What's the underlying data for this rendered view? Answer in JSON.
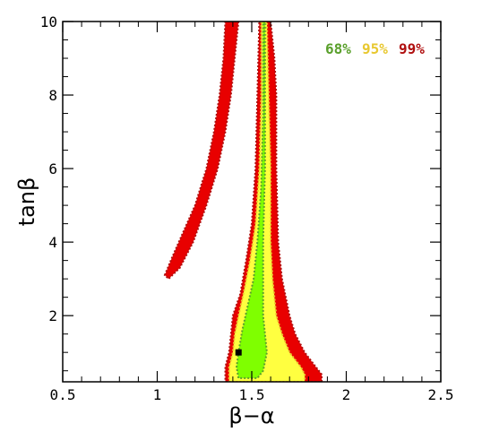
{
  "chart_data": {
    "type": "contour",
    "xlabel": "β−α",
    "ylabel": "tanβ",
    "xlim": [
      0.5,
      2.5
    ],
    "ylim": [
      0.2,
      10
    ],
    "x_ticks": [
      0.5,
      1,
      1.5,
      2,
      2.5
    ],
    "x_tick_labels": [
      "0.5",
      "1",
      "1.5",
      "2",
      "2.5"
    ],
    "y_ticks": [
      2,
      4,
      6,
      8,
      10
    ],
    "y_tick_labels": [
      "2",
      "4",
      "6",
      "8",
      "10"
    ],
    "legend": [
      {
        "label": "68%",
        "color": "#5aa02c"
      },
      {
        "label": "95%",
        "color": "#e8c830"
      },
      {
        "label": "99%",
        "color": "#b01010"
      }
    ],
    "legend_position": "top-right",
    "best_fit_point": {
      "x": 1.43,
      "y": 1.0
    },
    "regions": [
      {
        "level": "99%",
        "color": "#e80000",
        "outline": "#b01010",
        "polygons": [
          [
            [
              1.04,
              3.1
            ],
            [
              1.08,
              3.6
            ],
            [
              1.14,
              4.3
            ],
            [
              1.2,
              5.0
            ],
            [
              1.26,
              6.0
            ],
            [
              1.3,
              7.0
            ],
            [
              1.33,
              8.0
            ],
            [
              1.35,
              9.0
            ],
            [
              1.36,
              10.0
            ],
            [
              1.43,
              10.0
            ],
            [
              1.41,
              9.0
            ],
            [
              1.39,
              8.0
            ],
            [
              1.36,
              7.0
            ],
            [
              1.32,
              6.0
            ],
            [
              1.26,
              5.0
            ],
            [
              1.19,
              4.0
            ],
            [
              1.12,
              3.3
            ],
            [
              1.06,
              3.0
            ]
          ],
          [
            [
              1.54,
              10.0
            ],
            [
              1.6,
              10.0
            ],
            [
              1.62,
              9.0
            ],
            [
              1.63,
              8.0
            ],
            [
              1.63,
              6.0
            ],
            [
              1.64,
              4.0
            ],
            [
              1.66,
              3.0
            ],
            [
              1.7,
              2.0
            ],
            [
              1.73,
              1.5
            ],
            [
              1.78,
              1.0
            ],
            [
              1.84,
              0.6
            ],
            [
              1.87,
              0.4
            ],
            [
              1.87,
              0.2
            ],
            [
              1.36,
              0.2
            ],
            [
              1.36,
              0.6
            ],
            [
              1.38,
              1.0
            ],
            [
              1.39,
              1.5
            ],
            [
              1.4,
              2.0
            ],
            [
              1.44,
              2.6
            ],
            [
              1.47,
              3.5
            ],
            [
              1.5,
              4.5
            ],
            [
              1.52,
              6.0
            ],
            [
              1.53,
              8.0
            ]
          ]
        ]
      },
      {
        "level": "95%",
        "color": "#ffff40",
        "outline": "#e8c830",
        "polygons": [
          [
            [
              1.55,
              10.0
            ],
            [
              1.58,
              10.0
            ],
            [
              1.59,
              8.0
            ],
            [
              1.6,
              6.0
            ],
            [
              1.6,
              4.0
            ],
            [
              1.61,
              3.0
            ],
            [
              1.63,
              2.0
            ],
            [
              1.66,
              1.5
            ],
            [
              1.7,
              1.0
            ],
            [
              1.76,
              0.6
            ],
            [
              1.78,
              0.4
            ],
            [
              1.78,
              0.2
            ],
            [
              1.38,
              0.2
            ],
            [
              1.38,
              0.6
            ],
            [
              1.4,
              1.0
            ],
            [
              1.41,
              1.5
            ],
            [
              1.43,
              2.0
            ],
            [
              1.46,
              2.7
            ],
            [
              1.49,
              3.5
            ],
            [
              1.52,
              4.5
            ],
            [
              1.54,
              6.0
            ],
            [
              1.55,
              8.0
            ]
          ]
        ]
      },
      {
        "level": "68%",
        "color": "#7fff00",
        "outline": "#5aa02c",
        "polygons": [
          [
            [
              1.56,
              10.0
            ],
            [
              1.57,
              10.0
            ],
            [
              1.57,
              8.0
            ],
            [
              1.57,
              6.0
            ],
            [
              1.56,
              4.0
            ],
            [
              1.56,
              3.0
            ],
            [
              1.56,
              2.0
            ],
            [
              1.57,
              1.5
            ],
            [
              1.58,
              1.0
            ],
            [
              1.56,
              0.5
            ],
            [
              1.53,
              0.3
            ],
            [
              1.43,
              0.3
            ],
            [
              1.42,
              0.6
            ],
            [
              1.43,
              1.0
            ],
            [
              1.45,
              1.6
            ],
            [
              1.48,
              2.3
            ],
            [
              1.51,
              3.0
            ],
            [
              1.53,
              4.0
            ],
            [
              1.55,
              5.5
            ],
            [
              1.56,
              7.5
            ]
          ]
        ]
      }
    ]
  }
}
